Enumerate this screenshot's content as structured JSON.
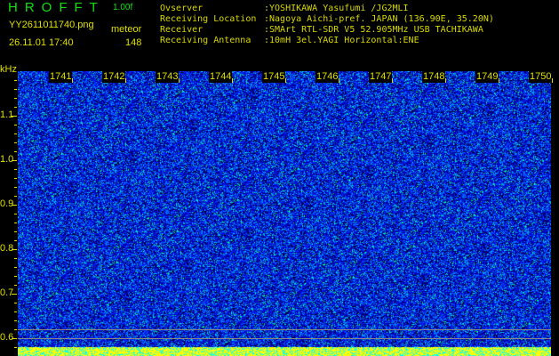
{
  "header": {
    "app": "HROFFT",
    "version": "1.00f",
    "filename": "YY2611011740.png",
    "mode": "meteor",
    "datetime": "26.11.01 17:40",
    "count": "148"
  },
  "info": [
    {
      "label": "Ovserver",
      "value": ":YOSHIKAWA Yasufumi /JG2MLI"
    },
    {
      "label": "Receiving Location",
      "value": ":Nagoya Aichi-pref. JAPAN (136.90E, 35.20N)"
    },
    {
      "label": "Receiver",
      "value": ":SMArt RTL-SDR V5 52.905MHz USB TACHIKAWA"
    },
    {
      "label": "Receiving Antenna",
      "value": ":10mH 3el.YAGI Horizontal:ENE"
    }
  ],
  "chart_data": {
    "type": "heatmap",
    "ylabel": "kHz",
    "yticks": [
      "1.1",
      "1.0",
      "0.9",
      "0.8",
      "0.7",
      "0.6"
    ],
    "ylim": [
      0.58,
      1.2
    ],
    "xticks": [
      "1741",
      "1742",
      "1743",
      "1744",
      "1745",
      "1746",
      "1747",
      "1748",
      "1749",
      "1750"
    ],
    "reference_lines_khz": [
      0.62,
      0.6
    ],
    "colors": {
      "background": "#0000a0",
      "noise_low": "#0030ff",
      "noise_mid": "#00c0ff",
      "noise_high": "#00ff80",
      "bottom_bar": "#ffff00",
      "bottom_bar_alt": "#00ffff",
      "text": "#e0e000"
    }
  }
}
